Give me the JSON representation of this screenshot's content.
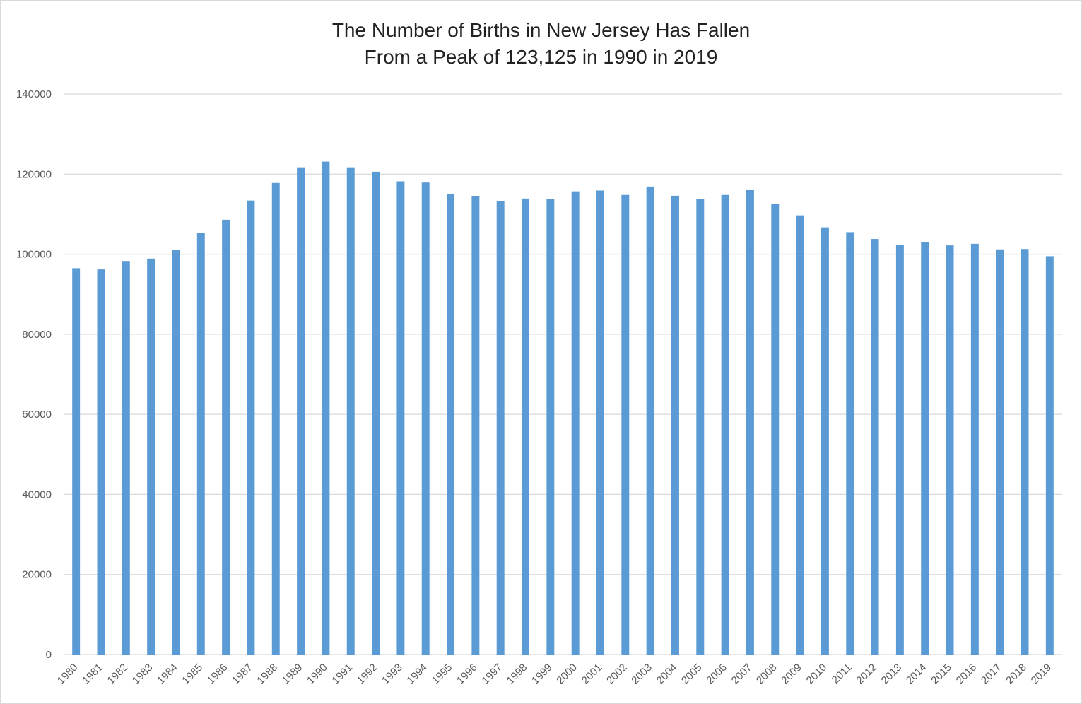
{
  "chart_data": {
    "type": "bar",
    "title_lines": [
      "The Number of Births in New Jersey Has Fallen",
      "From a Peak of 123,125 in 1990 in 2019"
    ],
    "xlabel": "",
    "ylabel": "",
    "ylim": [
      0,
      140000
    ],
    "yticks": [
      0,
      20000,
      40000,
      60000,
      80000,
      100000,
      120000,
      140000
    ],
    "grid": true,
    "legend": "none",
    "bar_color": "#5b9bd5",
    "categories": [
      "1980",
      "1981",
      "1982",
      "1983",
      "1984",
      "1985",
      "1986",
      "1987",
      "1988",
      "1989",
      "1990",
      "1991",
      "1992",
      "1993",
      "1994",
      "1995",
      "1996",
      "1997",
      "1998",
      "1999",
      "2000",
      "2001",
      "2002",
      "2003",
      "2004",
      "2005",
      "2006",
      "2007",
      "2008",
      "2009",
      "2010",
      "2011",
      "2012",
      "2013",
      "2014",
      "2015",
      "2016",
      "2017",
      "2018",
      "2019"
    ],
    "values": [
      96500,
      96200,
      98300,
      98900,
      101000,
      105400,
      108600,
      113400,
      117800,
      121700,
      123125,
      121700,
      120600,
      118200,
      117900,
      115100,
      114400,
      113300,
      113900,
      113800,
      115700,
      115900,
      114800,
      116900,
      114600,
      113700,
      114800,
      116000,
      112500,
      109700,
      106700,
      105500,
      103800,
      102400,
      103000,
      102200,
      102600,
      101200,
      101300,
      99500
    ]
  }
}
